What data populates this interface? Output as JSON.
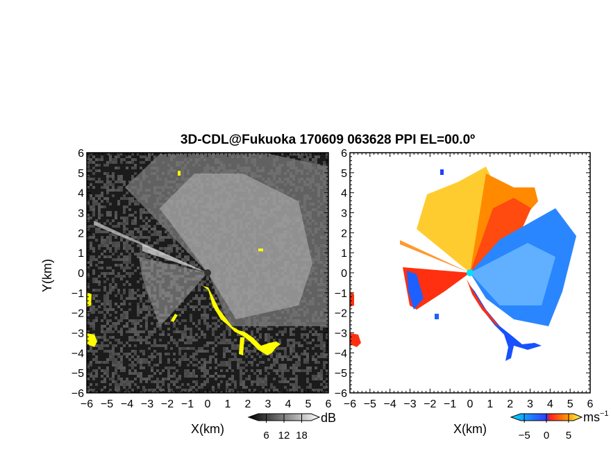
{
  "title": "3D-CDL@Fukuoka 170609 063628 PPI EL=00.0º",
  "colors": {
    "background_left": "#1a1a1a",
    "echo_yellow": "#ffff00",
    "velocity_blue": "#1e78ff",
    "velocity_red": "#ff3010",
    "velocity_orange": "#ff9a00",
    "velocity_yellow": "#ffe040",
    "velocity_cyan": "#00e0ff"
  },
  "chart_data": [
    {
      "type": "heatmap",
      "panel": "left",
      "quantity": "SNR",
      "xlabel": "X(km)",
      "ylabel": "Y(km)",
      "xlim": [
        -6,
        6
      ],
      "ylim": [
        -6,
        6
      ],
      "xticks": [
        "-6",
        "-5",
        "-4",
        "-3",
        "-2",
        "-1",
        "0",
        "1",
        "2",
        "3",
        "4",
        "5",
        "6"
      ],
      "yticks": [
        "6",
        "5",
        "4",
        "3",
        "2",
        "1",
        "0",
        "-1",
        "-2",
        "-3",
        "-4",
        "-5",
        "-6"
      ],
      "colorbar": {
        "unit": "dB",
        "ticks": [
          "6",
          "12",
          "18"
        ],
        "values": [
          6,
          12,
          18
        ],
        "range": [
          0,
          24
        ]
      }
    },
    {
      "type": "heatmap",
      "panel": "right",
      "quantity": "Doppler velocity",
      "xlabel": "X(km)",
      "xlim": [
        -6,
        6
      ],
      "ylim": [
        -6,
        6
      ],
      "xticks": [
        "-6",
        "-5",
        "-4",
        "-3",
        "-2",
        "-1",
        "0",
        "1",
        "2",
        "3",
        "4",
        "5",
        "6"
      ],
      "yticks": [
        "6",
        "5",
        "4",
        "3",
        "2",
        "1",
        "0",
        "-1",
        "-2",
        "-3",
        "-4",
        "-5",
        "-6"
      ],
      "colorbar": {
        "unit": "ms",
        "unit_exponent": "−1",
        "ticks": [
          "−5",
          "0",
          "5"
        ],
        "values": [
          -5,
          0,
          5
        ],
        "range": [
          -8,
          8
        ]
      }
    }
  ]
}
